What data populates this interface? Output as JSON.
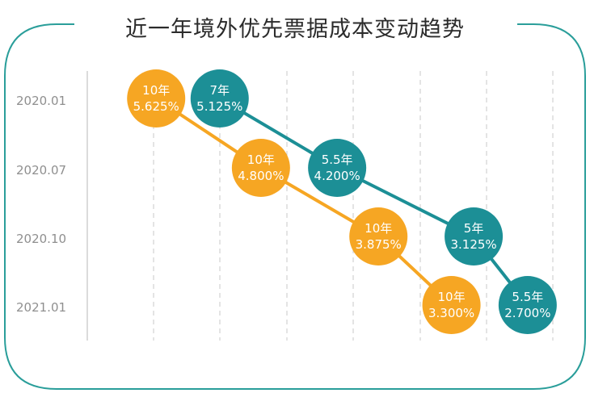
{
  "title": "近一年境外优先票据成本变动趋势",
  "colors": {
    "frame": "#2a9e9a",
    "grid": "#c8c8c8",
    "axis": "#cfcfcf",
    "tick_text": "#8f8f8f",
    "orange": "#f6a623",
    "teal": "#1c8f96",
    "bubble_text": "#ffffff"
  },
  "chart_data": {
    "type": "scatter",
    "title": "近一年境外优先票据成本变动趋势",
    "y_categories": [
      "2020.01",
      "2020.07",
      "2020.10",
      "2021.01"
    ],
    "xlabel": "",
    "ylabel": "",
    "grid": "vertical dashed",
    "series": [
      {
        "color": "#f6a623",
        "points": [
          {
            "period": "2020.01",
            "tenor": "10年",
            "rate": "5.625%",
            "value": 5.625
          },
          {
            "period": "2020.07",
            "tenor": "10年",
            "rate": "4.800%",
            "value": 4.8
          },
          {
            "period": "2020.10",
            "tenor": "10年",
            "rate": "3.875%",
            "value": 3.875
          },
          {
            "period": "2021.01",
            "tenor": "10年",
            "rate": "3.300%",
            "value": 3.3
          }
        ]
      },
      {
        "color": "#1c8f96",
        "points": [
          {
            "period": "2020.01",
            "tenor": "7年",
            "rate": "5.125%",
            "value": 5.125
          },
          {
            "period": "2020.07",
            "tenor": "5.5年",
            "rate": "4.200%",
            "value": 4.2
          },
          {
            "period": "2020.10",
            "tenor": "5年",
            "rate": "3.125%",
            "value": 3.125
          },
          {
            "period": "2021.01",
            "tenor": "5.5年",
            "rate": "2.700%",
            "value": 2.7
          }
        ]
      }
    ]
  }
}
